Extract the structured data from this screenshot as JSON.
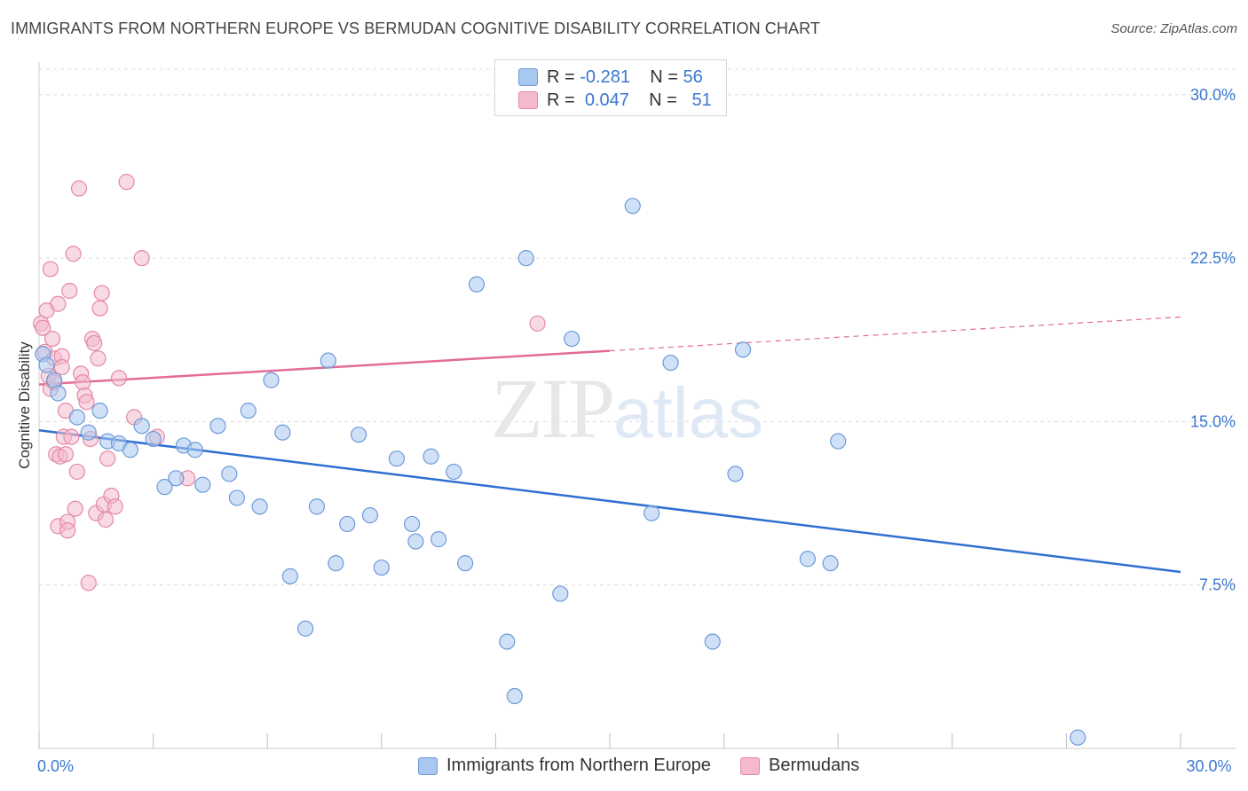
{
  "header": {
    "title": "IMMIGRANTS FROM NORTHERN EUROPE VS BERMUDAN COGNITIVE DISABILITY CORRELATION CHART",
    "source": "Source: ZipAtlas.com"
  },
  "watermark": {
    "zip": "ZIP",
    "atlas": "atlas"
  },
  "legend": {
    "r_label": "R =",
    "n_label": "N =",
    "rows": [
      {
        "r": "-0.281",
        "n": "56",
        "color": "#a9c8f0"
      },
      {
        "r": "0.047",
        "n": "51",
        "color": "#f4b9cc"
      }
    ]
  },
  "colors": {
    "blue_fill": "#a9c8f0",
    "blue_stroke": "#6d9ad8",
    "blue_line": "#2f6fd0",
    "pink_fill": "#f4b9cc",
    "pink_stroke": "#e389a6",
    "pink_line": "#e26c95",
    "tick_label": "#3a77d0",
    "grid": "#dcdcdc"
  },
  "chart_data": {
    "type": "scatter",
    "xlabel": "",
    "ylabel": "Cognitive Disability",
    "xlim": [
      0,
      30
    ],
    "ylim": [
      0,
      31.5
    ],
    "x_ticks": [
      0,
      3,
      6,
      9,
      12,
      15,
      18,
      21,
      24,
      27,
      30
    ],
    "x_tick_labels": [
      {
        "value": 0,
        "label": "0.0%"
      },
      {
        "value": 30,
        "label": "30.0%"
      }
    ],
    "y_ticks": [
      {
        "value": 7.5,
        "label": "7.5%"
      },
      {
        "value": 15.0,
        "label": "15.0%"
      },
      {
        "value": 22.5,
        "label": "22.5%"
      },
      {
        "value": 30.0,
        "label": "30.0%"
      }
    ],
    "grid": true,
    "legend_position": "top-center",
    "series": [
      {
        "name": "Immigrants from Northern Europe",
        "color": "#a9c8f0",
        "trend": {
          "x": [
            0,
            30
          ],
          "y": [
            14.6,
            8.1
          ],
          "dashed_from": null
        },
        "points": [
          [
            0.1,
            18.1
          ],
          [
            0.2,
            17.6
          ],
          [
            0.4,
            16.9
          ],
          [
            0.5,
            16.3
          ],
          [
            1.0,
            15.2
          ],
          [
            1.3,
            14.5
          ],
          [
            1.6,
            15.5
          ],
          [
            1.8,
            14.1
          ],
          [
            2.1,
            14.0
          ],
          [
            2.4,
            13.7
          ],
          [
            2.7,
            14.8
          ],
          [
            3.0,
            14.2
          ],
          [
            3.3,
            12.0
          ],
          [
            3.6,
            12.4
          ],
          [
            3.8,
            13.9
          ],
          [
            4.1,
            13.7
          ],
          [
            4.3,
            12.1
          ],
          [
            4.7,
            14.8
          ],
          [
            5.0,
            12.6
          ],
          [
            5.2,
            11.5
          ],
          [
            5.5,
            15.5
          ],
          [
            5.8,
            11.1
          ],
          [
            6.1,
            16.9
          ],
          [
            6.4,
            14.5
          ],
          [
            6.6,
            7.9
          ],
          [
            7.0,
            5.5
          ],
          [
            7.3,
            11.1
          ],
          [
            7.6,
            17.8
          ],
          [
            7.8,
            8.5
          ],
          [
            8.1,
            10.3
          ],
          [
            8.4,
            14.4
          ],
          [
            8.7,
            10.7
          ],
          [
            9.0,
            8.3
          ],
          [
            9.4,
            13.3
          ],
          [
            9.8,
            10.3
          ],
          [
            9.9,
            9.5
          ],
          [
            10.3,
            13.4
          ],
          [
            10.5,
            9.6
          ],
          [
            10.9,
            12.7
          ],
          [
            11.2,
            8.5
          ],
          [
            11.5,
            21.3
          ],
          [
            12.3,
            4.9
          ],
          [
            12.5,
            2.4
          ],
          [
            12.8,
            22.5
          ],
          [
            13.7,
            7.1
          ],
          [
            14.0,
            18.8
          ],
          [
            15.6,
            24.9
          ],
          [
            16.1,
            10.8
          ],
          [
            16.6,
            17.7
          ],
          [
            17.7,
            4.9
          ],
          [
            18.3,
            12.6
          ],
          [
            18.5,
            18.3
          ],
          [
            20.2,
            8.7
          ],
          [
            20.8,
            8.5
          ],
          [
            21.0,
            14.1
          ],
          [
            27.3,
            0.5
          ]
        ]
      },
      {
        "name": "Bermudans",
        "color": "#f4b9cc",
        "trend": {
          "x": [
            0,
            30
          ],
          "y": [
            16.7,
            19.8
          ],
          "dashed_from": 15.0
        },
        "points": [
          [
            0.05,
            19.5
          ],
          [
            0.1,
            19.3
          ],
          [
            0.15,
            18.2
          ],
          [
            0.2,
            20.1
          ],
          [
            0.25,
            17.1
          ],
          [
            0.3,
            22.0
          ],
          [
            0.3,
            16.5
          ],
          [
            0.35,
            18.8
          ],
          [
            0.4,
            17.9
          ],
          [
            0.4,
            16.8
          ],
          [
            0.45,
            13.5
          ],
          [
            0.5,
            10.2
          ],
          [
            0.5,
            20.4
          ],
          [
            0.55,
            13.4
          ],
          [
            0.6,
            18.0
          ],
          [
            0.6,
            17.5
          ],
          [
            0.65,
            14.3
          ],
          [
            0.7,
            15.5
          ],
          [
            0.7,
            13.5
          ],
          [
            0.75,
            10.4
          ],
          [
            0.75,
            10.0
          ],
          [
            0.8,
            21.0
          ],
          [
            0.85,
            14.3
          ],
          [
            0.9,
            22.7
          ],
          [
            0.95,
            11.0
          ],
          [
            1.0,
            12.7
          ],
          [
            1.05,
            25.7
          ],
          [
            1.1,
            17.2
          ],
          [
            1.15,
            16.8
          ],
          [
            1.2,
            16.2
          ],
          [
            1.25,
            15.9
          ],
          [
            1.3,
            7.6
          ],
          [
            1.35,
            14.2
          ],
          [
            1.4,
            18.8
          ],
          [
            1.45,
            18.6
          ],
          [
            1.5,
            10.8
          ],
          [
            1.55,
            17.9
          ],
          [
            1.6,
            20.2
          ],
          [
            1.65,
            20.9
          ],
          [
            1.7,
            11.2
          ],
          [
            1.75,
            10.5
          ],
          [
            1.8,
            13.3
          ],
          [
            1.9,
            11.6
          ],
          [
            2.0,
            11.1
          ],
          [
            2.1,
            17.0
          ],
          [
            2.3,
            26.0
          ],
          [
            2.5,
            15.2
          ],
          [
            2.7,
            22.5
          ],
          [
            3.1,
            14.3
          ],
          [
            3.9,
            12.4
          ],
          [
            13.1,
            19.5
          ]
        ]
      }
    ]
  }
}
